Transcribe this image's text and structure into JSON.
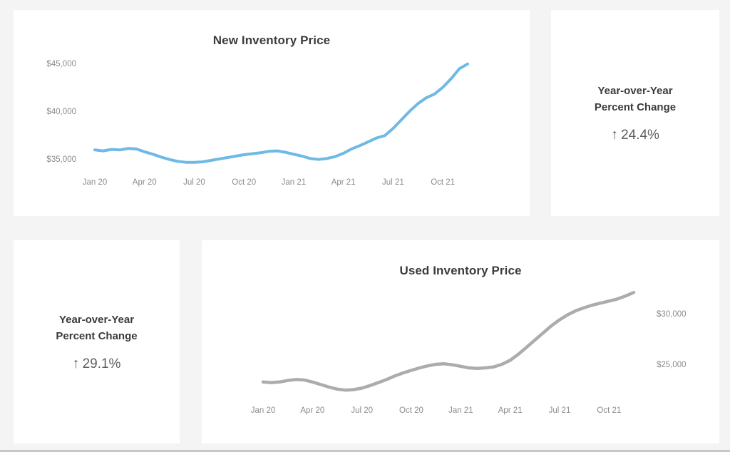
{
  "page": {
    "background_color": "#f4f4f4",
    "bottom_strip_color": "#c7c7c7",
    "card_color": "#ffffff"
  },
  "cards": {
    "new_yoy": {
      "heading_lines": [
        "Year-over-Year",
        "Percent Change"
      ],
      "arrow": "↑",
      "arrow_meaning": "up-arrow-icon",
      "value": "24.4%"
    },
    "used_yoy": {
      "heading_lines": [
        "Year-over-Year",
        "Percent Change"
      ],
      "arrow": "↑",
      "arrow_meaning": "up-arrow-icon",
      "value": "29.1%"
    }
  },
  "chart_data": [
    {
      "type": "line",
      "title": "New Inventory Price",
      "x_period": "semi-monthly points, Jan 2020 to mid-Nov 2021",
      "x_tick_labels": [
        "Jan 20",
        "Apr 20",
        "Jul 20",
        "Oct 20",
        "Jan 21",
        "Apr 21",
        "Jul 21",
        "Oct 21"
      ],
      "x_tick_indices": [
        0,
        6,
        12,
        18,
        24,
        30,
        36,
        42
      ],
      "y_ticks": [
        {
          "label": "$45,000",
          "value": 45000
        },
        {
          "label": "$40,000",
          "value": 40000
        },
        {
          "label": "$35,000",
          "value": 35000
        }
      ],
      "y_axis_side": "left",
      "ylim": [
        34200,
        45600
      ],
      "grid": false,
      "legend": false,
      "axis_label_color": "#8b8b8b",
      "title_color": "#3b3b3b",
      "series": [
        {
          "name": "New Inventory Price",
          "color": "#6eb9e5",
          "values": [
            35950,
            35850,
            36000,
            35950,
            36100,
            36050,
            35750,
            35500,
            35200,
            34950,
            34750,
            34650,
            34650,
            34700,
            34850,
            35000,
            35150,
            35300,
            35450,
            35550,
            35650,
            35800,
            35850,
            35700,
            35500,
            35300,
            35050,
            34950,
            35050,
            35250,
            35600,
            36050,
            36400,
            36800,
            37200,
            37450,
            38200,
            39100,
            40000,
            40800,
            41400,
            41800,
            42500,
            43400,
            44450,
            44950
          ]
        }
      ]
    },
    {
      "type": "line",
      "title": "Used Inventory Price",
      "x_period": "semi-monthly points, Jan 2020 to mid-Nov 2021",
      "x_tick_labels": [
        "Jan 20",
        "Apr 20",
        "Jul 20",
        "Oct 20",
        "Jan 21",
        "Apr 21",
        "Jul 21",
        "Oct 21"
      ],
      "x_tick_indices": [
        0,
        6,
        12,
        18,
        24,
        30,
        36,
        42
      ],
      "y_ticks": [
        {
          "label": "$30,000",
          "value": 30000
        },
        {
          "label": "$25,000",
          "value": 25000
        }
      ],
      "y_axis_side": "right",
      "ylim": [
        22000,
        32600
      ],
      "grid": false,
      "legend": false,
      "axis_label_color": "#8b8b8b",
      "title_color": "#3b3b3b",
      "series": [
        {
          "name": "Used Inventory Price",
          "color": "#acacac",
          "values": [
            23250,
            23200,
            23250,
            23400,
            23500,
            23450,
            23250,
            23000,
            22750,
            22550,
            22450,
            22500,
            22650,
            22900,
            23200,
            23500,
            23850,
            24150,
            24400,
            24650,
            24850,
            25000,
            25050,
            24950,
            24800,
            24650,
            24600,
            24650,
            24750,
            25000,
            25400,
            26000,
            26700,
            27400,
            28100,
            28800,
            29400,
            29900,
            30300,
            30600,
            30850,
            31050,
            31250,
            31450,
            31750,
            32100
          ]
        }
      ]
    }
  ]
}
